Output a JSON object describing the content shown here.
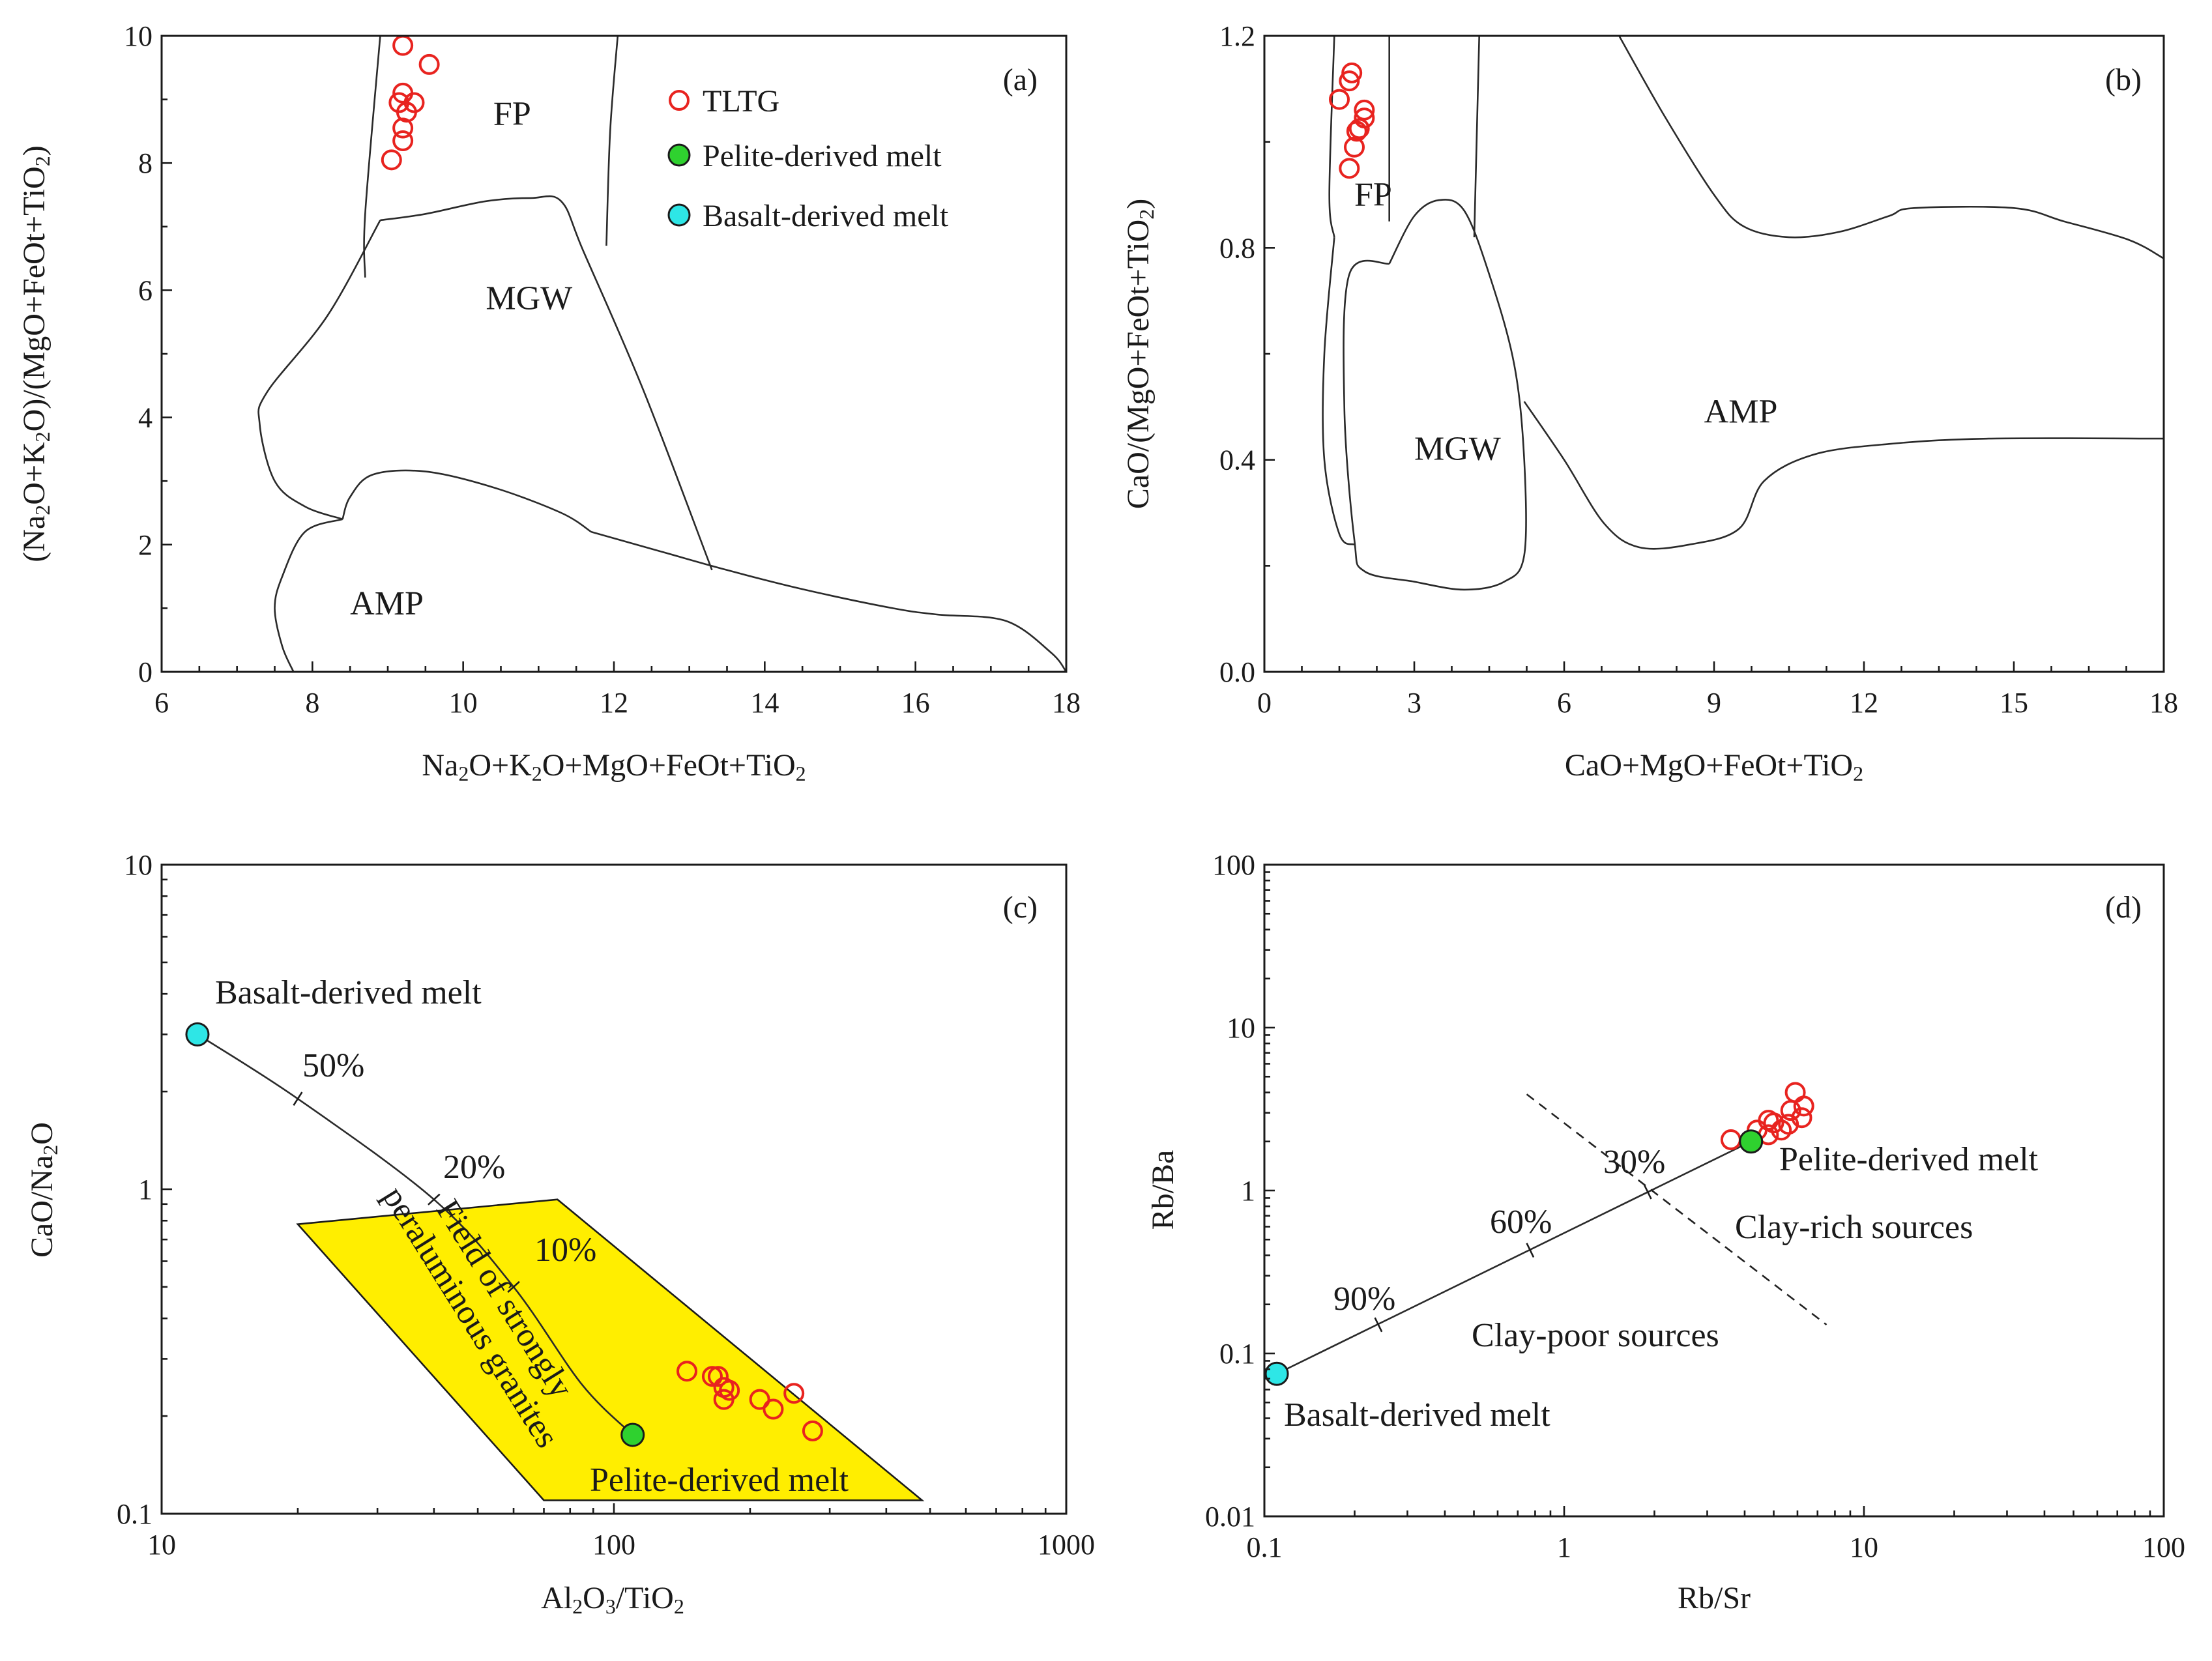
{
  "colors": {
    "tltg": "#e8231f",
    "pelite": "#2fd12f",
    "basalt": "#2ee6e6",
    "field_spg": "#ffee00",
    "line": "#222222"
  },
  "legend": {
    "items": [
      {
        "label": "TLTG",
        "marker": "open-circle",
        "color": "#e8231f"
      },
      {
        "label": "Pelite-derived melt",
        "marker": "filled-circle",
        "color": "#2fd12f"
      },
      {
        "label": "Basalt-derived melt",
        "marker": "filled-circle",
        "color": "#2ee6e6"
      }
    ]
  },
  "chart_data": [
    {
      "id": "a",
      "panel_label": "(a)",
      "type": "scatter",
      "xlabel": "Na₂O+K₂O+MgO+FeOt+TiO₂",
      "ylabel": "(Na₂O+K₂O)/(MgO+FeOt+TiO₂)",
      "xlim": [
        6,
        18
      ],
      "ylim": [
        0,
        10
      ],
      "xticks": [
        6,
        8,
        10,
        12,
        14,
        16,
        18
      ],
      "yticks": [
        0,
        2,
        4,
        6,
        8,
        10
      ],
      "xtick_labels": [
        "6",
        "8",
        "10",
        "12",
        "14",
        "16",
        "18"
      ],
      "ytick_labels": [
        "0",
        "2",
        "4",
        "6",
        "8",
        "10"
      ],
      "fields": [
        {
          "name": "FP",
          "label_at": [
            10.4,
            8.6
          ],
          "boundaries": [
            [
              [
                8.7,
                6.2
              ],
              [
                8.7,
                7.2
              ],
              [
                8.9,
                10
              ]
            ],
            [
              [
                11.9,
                6.7
              ],
              [
                11.95,
                8.5
              ],
              [
                12.05,
                10
              ]
            ]
          ]
        },
        {
          "name": "MGW",
          "label_at": [
            10.3,
            5.7
          ],
          "boundaries": [
            [
              [
                8.9,
                7.1
              ],
              [
                9.5,
                7.2
              ],
              [
                10.3,
                7.4
              ],
              [
                10.9,
                7.45
              ],
              [
                11.3,
                7.4
              ],
              [
                11.6,
                6.6
              ],
              [
                12.4,
                4.4
              ],
              [
                13.3,
                1.6
              ]
            ],
            [
              [
                8.9,
                7.1
              ],
              [
                8.2,
                5.6
              ],
              [
                7.4,
                4.4
              ],
              [
                7.3,
                3.9
              ],
              [
                7.5,
                3.0
              ],
              [
                7.9,
                2.6
              ],
              [
                8.4,
                2.4
              ]
            ],
            [
              [
                8.4,
                2.4
              ],
              [
                8.5,
                2.75
              ],
              [
                8.8,
                3.1
              ],
              [
                9.5,
                3.15
              ],
              [
                10.4,
                2.9
              ],
              [
                11.3,
                2.5
              ],
              [
                11.7,
                2.2
              ]
            ]
          ]
        },
        {
          "name": "AMP",
          "label_at": [
            8.5,
            0.9
          ],
          "boundaries": [
            [
              [
                11.7,
                2.2
              ],
              [
                12.6,
                1.9
              ],
              [
                13.5,
                1.6
              ],
              [
                14.5,
                1.3
              ],
              [
                15.7,
                1.0
              ],
              [
                16.3,
                0.9
              ],
              [
                17.2,
                0.8
              ],
              [
                17.8,
                0.3
              ],
              [
                18.0,
                0.0
              ]
            ],
            [
              [
                8.4,
                2.4
              ],
              [
                7.9,
                2.2
              ],
              [
                7.6,
                1.5
              ],
              [
                7.5,
                1.0
              ],
              [
                7.6,
                0.4
              ],
              [
                7.75,
                0.0
              ]
            ]
          ]
        }
      ],
      "series": [
        {
          "name": "TLTG",
          "points": [
            [
              9.2,
              9.85
            ],
            [
              9.55,
              9.55
            ],
            [
              9.2,
              9.1
            ],
            [
              9.35,
              8.95
            ],
            [
              9.15,
              8.95
            ],
            [
              9.25,
              8.8
            ],
            [
              9.2,
              8.55
            ],
            [
              9.2,
              8.35
            ],
            [
              9.05,
              8.05
            ]
          ]
        }
      ]
    },
    {
      "id": "b",
      "panel_label": "(b)",
      "type": "scatter",
      "xlabel": "CaO+MgO+FeOt+TiO₂",
      "ylabel": "CaO/(MgO+FeOt+TiO₂)",
      "xlim": [
        0,
        18
      ],
      "ylim": [
        0,
        1.2
      ],
      "xticks": [
        0,
        3,
        6,
        9,
        12,
        15,
        18
      ],
      "yticks": [
        0,
        0.4,
        0.8,
        1.2
      ],
      "xtick_labels": [
        "0",
        "3",
        "6",
        "9",
        "12",
        "15",
        "18"
      ],
      "ytick_labels": [
        "0.0",
        "0.4",
        "0.8",
        "1.2"
      ],
      "fields": [
        {
          "name": "FP",
          "label_at": [
            1.8,
            0.88
          ],
          "boundaries": [
            [
              [
                1.4,
                0.82
              ],
              [
                1.3,
                0.9
              ],
              [
                1.4,
                1.2
              ]
            ],
            [
              [
                2.5,
                0.85
              ],
              [
                2.5,
                1.2
              ]
            ],
            [
              [
                4.2,
                0.82
              ],
              [
                4.3,
                1.2
              ]
            ]
          ]
        },
        {
          "name": "MGW",
          "label_at": [
            3.0,
            0.4
          ],
          "boundaries": [
            [
              [
                2.5,
                0.77
              ],
              [
                3.0,
                0.86
              ],
              [
                3.5,
                0.89
              ],
              [
                4.0,
                0.87
              ],
              [
                4.5,
                0.75
              ],
              [
                5.0,
                0.58
              ],
              [
                5.2,
                0.4
              ],
              [
                5.2,
                0.22
              ],
              [
                4.8,
                0.17
              ],
              [
                4.0,
                0.155
              ],
              [
                3.0,
                0.17
              ],
              [
                2.0,
                0.19
              ],
              [
                1.8,
                0.25
              ],
              [
                1.6,
                0.5
              ],
              [
                1.7,
                0.75
              ],
              [
                2.5,
                0.77
              ]
            ],
            [
              [
                1.4,
                0.82
              ],
              [
                1.2,
                0.6
              ],
              [
                1.2,
                0.4
              ],
              [
                1.5,
                0.26
              ],
              [
                1.8,
                0.24
              ]
            ]
          ]
        },
        {
          "name": "AMP",
          "label_at": [
            8.8,
            0.47
          ],
          "boundaries": [
            [
              [
                5.2,
                0.51
              ],
              [
                6.0,
                0.4
              ],
              [
                6.8,
                0.28
              ],
              [
                7.5,
                0.235
              ],
              [
                8.5,
                0.24
              ],
              [
                9.5,
                0.27
              ],
              [
                10.0,
                0.36
              ],
              [
                11.0,
                0.41
              ],
              [
                12.5,
                0.43
              ],
              [
                14.5,
                0.44
              ],
              [
                18.0,
                0.44
              ]
            ],
            [
              [
                7.1,
                1.2
              ],
              [
                8.0,
                1.05
              ],
              [
                9.0,
                0.9
              ],
              [
                9.6,
                0.84
              ],
              [
                10.5,
                0.82
              ],
              [
                11.5,
                0.83
              ],
              [
                12.5,
                0.86
              ],
              [
                13.0,
                0.875
              ],
              [
                15.0,
                0.875
              ],
              [
                16.0,
                0.85
              ],
              [
                17.3,
                0.815
              ],
              [
                18.0,
                0.78
              ]
            ]
          ]
        }
      ],
      "series": [
        {
          "name": "TLTG",
          "points": [
            [
              1.75,
              1.13
            ],
            [
              1.7,
              1.115
            ],
            [
              1.5,
              1.08
            ],
            [
              2.0,
              1.06
            ],
            [
              2.0,
              1.045
            ],
            [
              1.85,
              1.02
            ],
            [
              1.9,
              1.025
            ],
            [
              1.8,
              0.99
            ],
            [
              1.7,
              0.95
            ]
          ]
        }
      ]
    },
    {
      "id": "c",
      "panel_label": "(c)",
      "type": "scatter",
      "xscale": "log",
      "yscale": "log",
      "xlabel": "Al₂O₃/TiO₂",
      "ylabel": "CaO/Na₂O",
      "xlim": [
        10,
        1000
      ],
      "ylim": [
        0.1,
        10
      ],
      "xticks": [
        10,
        100,
        1000
      ],
      "yticks": [
        0.1,
        1,
        10
      ],
      "xtick_labels": [
        "10",
        "100",
        "1000"
      ],
      "ytick_labels": [
        "0.1",
        "1",
        "10"
      ],
      "polygon": {
        "name": "Field of strongly peraluminous granites",
        "label_lines": [
          "Field of strongly",
          "peraluminous granites"
        ],
        "vertices": [
          [
            20,
            0.78
          ],
          [
            75,
            0.93
          ],
          [
            480,
            0.11
          ],
          [
            70,
            0.11
          ]
        ]
      },
      "mixing_line": {
        "from": "Basalt-derived melt",
        "to": "Pelite-derived melt",
        "points": [
          [
            12,
            3.0
          ],
          [
            20,
            1.9
          ],
          [
            40,
            0.93
          ],
          [
            60,
            0.5
          ],
          [
            85,
            0.25
          ],
          [
            110,
            0.175
          ]
        ],
        "ticks": [
          {
            "label": "50%",
            "at": [
              20,
              1.9
            ]
          },
          {
            "label": "20%",
            "at": [
              40,
              0.93
            ]
          },
          {
            "label": "10%",
            "at": [
              60,
              0.5
            ]
          }
        ]
      },
      "endmembers": [
        {
          "name": "Basalt-derived melt",
          "point": [
            12,
            3.0
          ]
        },
        {
          "name": "Pelite-derived melt",
          "point": [
            110,
            0.175
          ]
        }
      ],
      "series": [
        {
          "name": "TLTG",
          "points": [
            [
              145,
              0.275
            ],
            [
              165,
              0.265
            ],
            [
              170,
              0.265
            ],
            [
              175,
              0.245
            ],
            [
              180,
              0.24
            ],
            [
              175,
              0.225
            ],
            [
              210,
              0.225
            ],
            [
              225,
              0.21
            ],
            [
              250,
              0.235
            ],
            [
              275,
              0.18
            ]
          ]
        }
      ]
    },
    {
      "id": "d",
      "panel_label": "(d)",
      "type": "scatter",
      "xscale": "log",
      "yscale": "log",
      "xlabel": "Rb/Sr",
      "ylabel": "Rb/Ba",
      "xlim": [
        0.1,
        100
      ],
      "ylim": [
        0.01,
        100
      ],
      "xticks": [
        0.1,
        1,
        10,
        100
      ],
      "yticks": [
        0.01,
        0.1,
        1,
        10,
        100
      ],
      "xtick_labels": [
        "0.1",
        "1",
        "10",
        "100"
      ],
      "ytick_labels": [
        "0.01",
        "0.1",
        "1",
        "10",
        "100"
      ],
      "mixing_line": {
        "from": "Basalt-derived melt",
        "to": "Pelite-derived melt",
        "points": [
          [
            0.11,
            0.075
          ],
          [
            4.2,
            2.0
          ]
        ],
        "ticks": [
          {
            "label": "90%",
            "at": [
              0.24,
              0.15
            ]
          },
          {
            "label": "60%",
            "at": [
              0.77,
              0.43
            ]
          },
          {
            "label": "30%",
            "at": [
              1.9,
              0.98
            ]
          }
        ]
      },
      "divider": {
        "style": "dashed",
        "points": [
          [
            0.75,
            3.9
          ],
          [
            7.5,
            0.15
          ]
        ],
        "labels": [
          "Clay-rich sources",
          "Clay-poor sources"
        ]
      },
      "endmembers": [
        {
          "name": "Basalt-derived melt",
          "point": [
            0.11,
            0.075
          ]
        },
        {
          "name": "Pelite-derived melt",
          "point": [
            4.2,
            2.0
          ]
        }
      ],
      "series": [
        {
          "name": "TLTG",
          "points": [
            [
              5.9,
              4.0
            ],
            [
              6.3,
              3.3
            ],
            [
              5.7,
              3.1
            ],
            [
              6.2,
              2.8
            ],
            [
              4.8,
              2.7
            ],
            [
              5.0,
              2.6
            ],
            [
              5.6,
              2.55
            ],
            [
              5.3,
              2.35
            ],
            [
              4.4,
              2.35
            ],
            [
              4.8,
              2.2
            ],
            [
              3.6,
              2.05
            ]
          ]
        }
      ]
    }
  ]
}
